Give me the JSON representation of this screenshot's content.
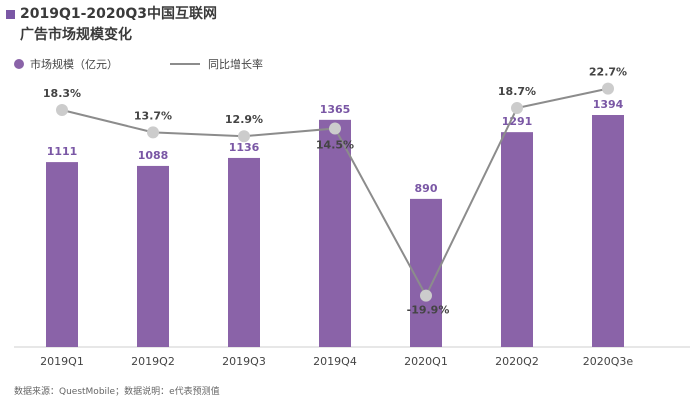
{
  "title_lines": [
    "2019Q1-2020Q3中国互联网",
    "广告市场规模变化"
  ],
  "legend": {
    "bar_label": "市场规模（亿元）",
    "line_label": "同比增长率"
  },
  "footer": "数据来源：QuestMobile；数据说明：e代表预测值",
  "colors": {
    "bar": "#8a63a8",
    "line": "#8c8c8c",
    "marker": "#cccccc",
    "accent": "#7a57a5"
  },
  "chart_data": {
    "type": "bar",
    "categories": [
      "2019Q1",
      "2019Q2",
      "2019Q3",
      "2019Q4",
      "2020Q1",
      "2020Q2",
      "2020Q3e"
    ],
    "series": [
      {
        "name": "市场规模（亿元）",
        "type": "bar",
        "values": [
          1111,
          1088,
          1136,
          1365,
          890,
          1291,
          1394
        ],
        "labels": [
          "1111",
          "1088",
          "1136",
          "1365",
          "890",
          "1291",
          "1394"
        ]
      },
      {
        "name": "同比增长率",
        "type": "line",
        "values": [
          18.3,
          13.7,
          12.9,
          14.5,
          -19.9,
          18.7,
          22.7
        ],
        "labels": [
          "18.3%",
          "13.7%",
          "12.9%",
          "14.5%",
          "-19.9%",
          "18.7%",
          "22.7%"
        ]
      }
    ]
  }
}
